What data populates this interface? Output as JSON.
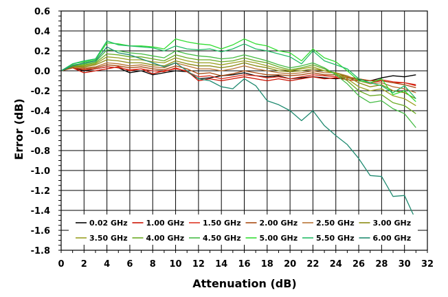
{
  "chart_data": {
    "type": "line",
    "title": "",
    "xlabel": "Attenuation (dB)",
    "ylabel": "Error (dB)",
    "xlim": [
      0,
      32
    ],
    "ylim": [
      -1.8,
      0.6
    ],
    "xticks": [
      0,
      2,
      4,
      6,
      8,
      10,
      12,
      14,
      16,
      18,
      20,
      22,
      24,
      26,
      28,
      30,
      32
    ],
    "yticks": [
      0.6,
      0.4,
      0.2,
      0.0,
      -0.2,
      -0.4,
      -0.6,
      -0.8,
      -1.0,
      -1.2,
      -1.4,
      -1.6,
      -1.8
    ],
    "xtick_labels": [
      "0",
      "2",
      "4",
      "6",
      "8",
      "10",
      "12",
      "14",
      "16",
      "18",
      "20",
      "22",
      "24",
      "26",
      "28",
      "30",
      "32"
    ],
    "ytick_labels": [
      "0.6",
      "0.4",
      "0.2",
      "0.0",
      "-0.2",
      "-0.4",
      "-0.6",
      "-0.8",
      "-1.0",
      "-1.2",
      "-1.4",
      "-1.6",
      "-1.8"
    ],
    "grid": true,
    "legend_position": "bottom",
    "x": [
      0,
      1,
      2,
      3,
      4,
      5,
      6,
      7,
      8,
      9,
      10,
      11,
      12,
      13,
      14,
      15,
      16,
      17,
      18,
      19,
      20,
      21,
      22,
      23,
      24,
      25,
      26,
      27,
      28,
      29,
      30,
      31
    ],
    "series": [
      {
        "name": "0.02 GHz",
        "color": "#000000",
        "values": [
          0.0,
          0.03,
          0.0,
          0.02,
          0.04,
          0.03,
          -0.02,
          0.0,
          -0.04,
          -0.02,
          0.0,
          -0.01,
          -0.08,
          -0.07,
          -0.05,
          -0.04,
          -0.02,
          -0.05,
          -0.06,
          -0.05,
          -0.08,
          -0.07,
          -0.06,
          -0.07,
          -0.08,
          -0.07,
          -0.09,
          -0.1,
          -0.07,
          -0.05,
          -0.06,
          -0.04
        ]
      },
      {
        "name": "1.00 GHz",
        "color": "#cc1100",
        "values": [
          0.0,
          0.03,
          -0.02,
          0.0,
          0.02,
          0.04,
          0.0,
          0.02,
          -0.03,
          0.0,
          0.02,
          0.0,
          -0.1,
          -0.08,
          -0.1,
          -0.08,
          -0.06,
          -0.08,
          -0.1,
          -0.08,
          -0.1,
          -0.08,
          -0.06,
          -0.08,
          -0.07,
          -0.09,
          -0.1,
          -0.12,
          -0.1,
          -0.12,
          -0.12,
          -0.14
        ]
      },
      {
        "name": "1.50 GHz",
        "color": "#dd3322",
        "values": [
          0.0,
          0.03,
          0.01,
          0.02,
          0.04,
          0.03,
          0.01,
          0.02,
          0.0,
          -0.01,
          0.03,
          -0.01,
          -0.06,
          -0.05,
          -0.08,
          -0.06,
          -0.04,
          -0.05,
          -0.07,
          -0.06,
          -0.08,
          -0.06,
          -0.04,
          -0.05,
          -0.06,
          -0.07,
          -0.08,
          -0.1,
          -0.09,
          -0.11,
          -0.12,
          -0.15
        ]
      },
      {
        "name": "2.00 GHz",
        "color": "#a84a10",
        "values": [
          0.0,
          0.03,
          0.02,
          0.03,
          0.06,
          0.05,
          0.03,
          0.04,
          0.02,
          0.01,
          0.05,
          0.02,
          -0.03,
          -0.02,
          -0.05,
          -0.03,
          0.0,
          -0.02,
          -0.04,
          -0.04,
          -0.05,
          -0.04,
          -0.02,
          -0.04,
          -0.04,
          -0.06,
          -0.08,
          -0.1,
          -0.1,
          -0.12,
          -0.14,
          -0.17
        ]
      },
      {
        "name": "2.50 GHz",
        "color": "#b87333",
        "values": [
          0.0,
          0.04,
          0.03,
          0.04,
          0.08,
          0.07,
          0.05,
          0.06,
          0.04,
          0.03,
          0.08,
          0.05,
          0.02,
          0.02,
          0.0,
          0.02,
          0.05,
          0.02,
          0.0,
          -0.02,
          -0.03,
          -0.02,
          0.0,
          -0.02,
          -0.02,
          -0.05,
          -0.1,
          -0.13,
          -0.12,
          -0.16,
          -0.18,
          -0.22
        ]
      },
      {
        "name": "3.00 GHz",
        "color": "#8a8a10",
        "values": [
          0.0,
          0.04,
          0.04,
          0.06,
          0.11,
          0.1,
          0.08,
          0.08,
          0.06,
          0.05,
          0.1,
          0.07,
          0.05,
          0.05,
          0.03,
          0.05,
          0.08,
          0.05,
          0.03,
          0.0,
          -0.01,
          0.0,
          0.02,
          0.0,
          -0.02,
          -0.06,
          -0.12,
          -0.16,
          -0.14,
          -0.2,
          -0.22,
          -0.28
        ]
      },
      {
        "name": "3.50 GHz",
        "color": "#9aa020",
        "values": [
          0.0,
          0.05,
          0.05,
          0.07,
          0.14,
          0.13,
          0.11,
          0.11,
          0.09,
          0.08,
          0.13,
          0.1,
          0.08,
          0.08,
          0.06,
          0.08,
          0.1,
          0.08,
          0.05,
          0.02,
          0.0,
          0.02,
          0.04,
          0.0,
          -0.03,
          -0.08,
          -0.16,
          -0.2,
          -0.18,
          -0.25,
          -0.28,
          -0.35
        ]
      },
      {
        "name": "4.00 GHz",
        "color": "#6aaa22",
        "values": [
          0.0,
          0.05,
          0.06,
          0.08,
          0.17,
          0.16,
          0.14,
          0.14,
          0.12,
          0.1,
          0.16,
          0.13,
          0.11,
          0.11,
          0.09,
          0.1,
          0.13,
          0.1,
          0.08,
          0.04,
          0.01,
          0.03,
          0.06,
          0.02,
          -0.03,
          -0.1,
          -0.2,
          -0.25,
          -0.24,
          -0.32,
          -0.35,
          -0.43
        ]
      },
      {
        "name": "4.50 GHz",
        "color": "#44bb44",
        "values": [
          0.0,
          0.06,
          0.07,
          0.09,
          0.21,
          0.2,
          0.18,
          0.17,
          0.15,
          0.13,
          0.2,
          0.17,
          0.15,
          0.14,
          0.12,
          0.13,
          0.16,
          0.13,
          0.1,
          0.06,
          0.03,
          0.05,
          0.08,
          0.03,
          -0.04,
          -0.13,
          -0.25,
          -0.32,
          -0.3,
          -0.38,
          -0.43,
          -0.57
        ]
      },
      {
        "name": "5.00 GHz",
        "color": "#33dd33",
        "values": [
          0.0,
          0.07,
          0.09,
          0.11,
          0.28,
          0.27,
          0.25,
          0.25,
          0.24,
          0.22,
          0.32,
          0.29,
          0.27,
          0.26,
          0.22,
          0.26,
          0.32,
          0.27,
          0.25,
          0.2,
          0.18,
          0.1,
          0.22,
          0.13,
          0.09,
          0.0,
          -0.1,
          -0.12,
          -0.08,
          -0.24,
          -0.2,
          -0.31
        ]
      },
      {
        "name": "5.50 GHz",
        "color": "#22bb66",
        "values": [
          0.0,
          0.07,
          0.1,
          0.12,
          0.3,
          0.26,
          0.25,
          0.24,
          0.23,
          0.2,
          0.25,
          0.22,
          0.21,
          0.22,
          0.19,
          0.22,
          0.27,
          0.22,
          0.2,
          0.17,
          0.14,
          0.07,
          0.2,
          0.1,
          0.06,
          0.02,
          -0.08,
          -0.12,
          -0.15,
          -0.22,
          -0.15,
          -0.28
        ]
      },
      {
        "name": "6.00 GHz",
        "color": "#1f8a70",
        "values": [
          0.0,
          0.05,
          0.08,
          0.1,
          0.24,
          0.18,
          0.16,
          0.12,
          0.08,
          0.04,
          0.08,
          0.0,
          -0.08,
          -0.1,
          -0.16,
          -0.18,
          -0.08,
          -0.15,
          -0.3,
          -0.34,
          -0.4,
          -0.5,
          -0.4,
          -0.55,
          -0.65,
          -0.74,
          -0.88,
          -1.05,
          -1.06,
          -1.26,
          -1.25,
          -1.5
        ]
      }
    ]
  }
}
